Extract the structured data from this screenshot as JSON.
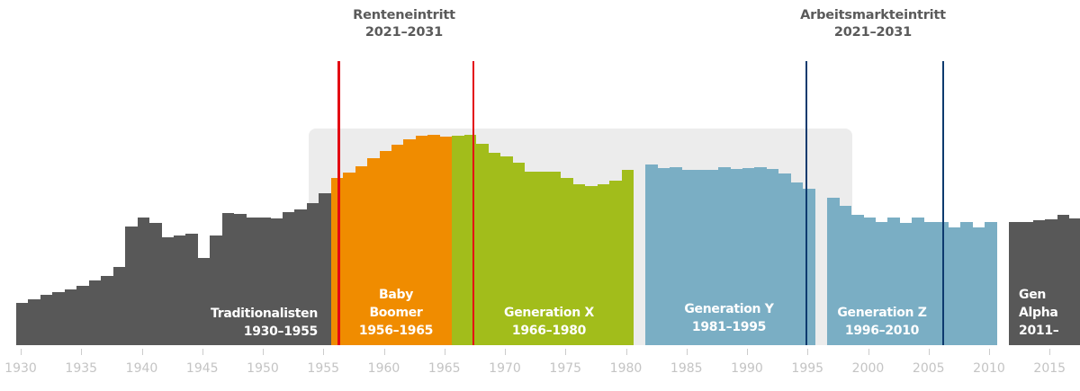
{
  "chart_data": {
    "type": "bar",
    "title": "",
    "xlabel": "",
    "ylabel": "",
    "grid": false,
    "note": "Values are bar heights in pixels above the baseline (relative birth counts per year); no y-axis shown.",
    "x_ticks": [
      "1930",
      "1935",
      "1940",
      "1945",
      "1950",
      "1955",
      "1960",
      "1965",
      "1970",
      "1975",
      "1980",
      "1985",
      "1990",
      "1995",
      "2000",
      "2005",
      "2010",
      "2015"
    ],
    "series": [
      {
        "name": "Traditionalisten",
        "label_line1": "Traditionalisten",
        "label_line2": "1930–1955",
        "color": "#585858",
        "start_year": 1930,
        "values": [
          47,
          51,
          56,
          59,
          62,
          66,
          72,
          77,
          87,
          132,
          142,
          136,
          120,
          122,
          124,
          97,
          122,
          147,
          146,
          142,
          142,
          141,
          148,
          151,
          158,
          169
        ]
      },
      {
        "name": "Baby Boomer",
        "label_line1": "Baby",
        "label_line2": "Boomer",
        "label_line3": "1956–1965",
        "color": "#f08c00",
        "start_year": 1956,
        "values": [
          186,
          192,
          199,
          208,
          216,
          223,
          229,
          233,
          234,
          232
        ]
      },
      {
        "name": "Generation X",
        "label_line1": "Generation X",
        "label_line2": "1966–1980",
        "color": "#a2bd1b",
        "start_year": 1966,
        "values": [
          233,
          234,
          224,
          214,
          210,
          203,
          193,
          193,
          193,
          186,
          179,
          177,
          179,
          183,
          195
        ]
      },
      {
        "name": "Generation Y",
        "label_line1": "Generation Y",
        "label_line2": "1981–1995",
        "color": "#7aaec4",
        "start_year": 1982,
        "values": [
          201,
          197,
          198,
          195,
          195,
          195,
          198,
          196,
          197,
          198,
          196,
          191,
          181,
          174
        ]
      },
      {
        "name": "Generation Z",
        "label_line1": "Generation Z",
        "label_line2": "1996–2010",
        "color": "#7aaec4",
        "start_year": 1997,
        "values": [
          164,
          155,
          145,
          142,
          137,
          142,
          136,
          142,
          137,
          137,
          131,
          137,
          131,
          137
        ]
      },
      {
        "name": "Gen Alpha",
        "label_line1": "Gen",
        "label_line2": "Alpha",
        "label_line3": "2011–",
        "color": "#585858",
        "start_year": 2012,
        "values": [
          137,
          137,
          139,
          140,
          145,
          141
        ]
      }
    ],
    "reference_lines": [
      {
        "group": "Renteneintritt",
        "year": 1956.2,
        "color": "#e30613"
      },
      {
        "group": "Renteneintritt",
        "year": 1967.3,
        "color": "#e30613"
      },
      {
        "group": "Arbeitsmarkteintritt",
        "year": 1994.8,
        "color": "#0d3a6e"
      },
      {
        "group": "Arbeitsmarkteintritt",
        "year": 2006.1,
        "color": "#0d3a6e"
      }
    ],
    "highlight_band": {
      "from_year": 1953.5,
      "to_year": 1998.5,
      "color": "#ececec"
    },
    "annotations": [
      {
        "line1": "Renteneintritt",
        "line2": "2021–2031"
      },
      {
        "line1": "Arbeitsmarkteintritt",
        "line2": "2021–2031"
      }
    ]
  }
}
